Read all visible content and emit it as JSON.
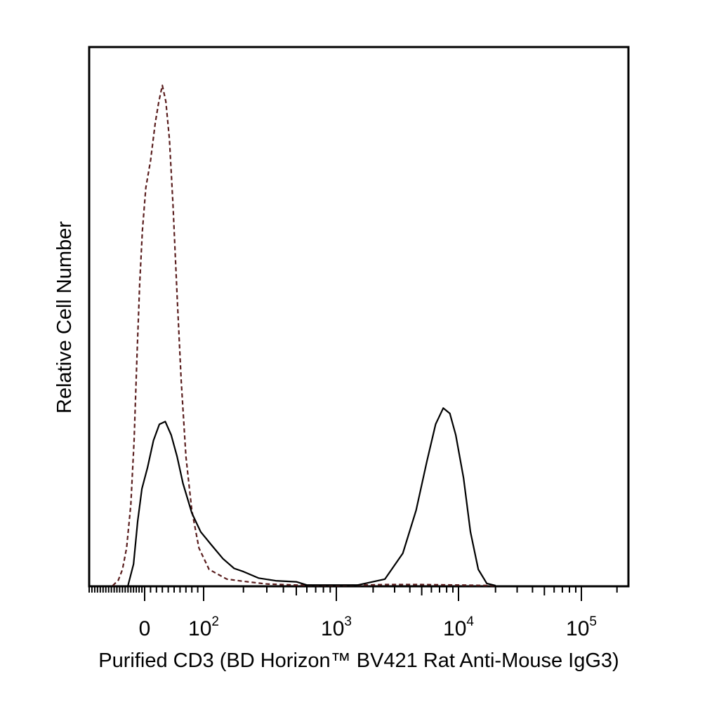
{
  "chart_data": {
    "type": "line",
    "title": "",
    "xlabel": "Purified CD3 (BD Horizon™ BV421 Rat Anti-Mouse IgG3)",
    "ylabel": "Relative Cell Number",
    "x_scale": "biexponential",
    "xlim": [
      -200,
      250000
    ],
    "ylim": [
      0,
      100
    ],
    "grid": false,
    "legend": "none",
    "x_ticks": [
      {
        "value": 0,
        "base": "0",
        "exp": ""
      },
      {
        "value": 100,
        "base": "10",
        "exp": "2"
      },
      {
        "value": 1000,
        "base": "10",
        "exp": "3"
      },
      {
        "value": 10000,
        "base": "10",
        "exp": "4"
      },
      {
        "value": 100000,
        "base": "10",
        "exp": "5"
      }
    ],
    "series": [
      {
        "style": "dashed",
        "color": "#5a1e1e",
        "points": [
          [
            -115,
            0
          ],
          [
            -95,
            1
          ],
          [
            -80,
            3
          ],
          [
            -65,
            7
          ],
          [
            -50,
            15
          ],
          [
            -38,
            27
          ],
          [
            -28,
            42
          ],
          [
            -18,
            56
          ],
          [
            -8,
            66
          ],
          [
            2,
            74
          ],
          [
            10,
            79
          ],
          [
            18,
            86
          ],
          [
            24,
            90
          ],
          [
            30,
            93
          ],
          [
            36,
            90
          ],
          [
            42,
            83
          ],
          [
            48,
            71
          ],
          [
            55,
            54
          ],
          [
            62,
            38
          ],
          [
            70,
            24
          ],
          [
            80,
            14
          ],
          [
            92,
            7
          ],
          [
            110,
            3
          ],
          [
            150,
            1.2
          ],
          [
            200,
            0.8
          ],
          [
            300,
            0.3
          ],
          [
            500,
            0.1
          ],
          [
            1000,
            0
          ],
          [
            2500,
            0.2
          ],
          [
            5000,
            0.2
          ],
          [
            10000,
            0.1
          ],
          [
            20000,
            0
          ]
        ]
      },
      {
        "style": "solid",
        "color": "#000000",
        "points": [
          [
            -60,
            0
          ],
          [
            -40,
            4
          ],
          [
            -25,
            12
          ],
          [
            -10,
            18
          ],
          [
            5,
            22
          ],
          [
            15,
            27
          ],
          [
            25,
            30
          ],
          [
            35,
            30.5
          ],
          [
            45,
            28
          ],
          [
            55,
            24
          ],
          [
            65,
            19
          ],
          [
            80,
            13.5
          ],
          [
            95,
            10
          ],
          [
            115,
            7.5
          ],
          [
            140,
            5
          ],
          [
            170,
            3.2
          ],
          [
            200,
            2.6
          ],
          [
            260,
            1.4
          ],
          [
            350,
            0.9
          ],
          [
            500,
            0.7
          ],
          [
            600,
            0.1
          ],
          [
            1500,
            0.1
          ],
          [
            2500,
            1.2
          ],
          [
            3500,
            6
          ],
          [
            4500,
            14
          ],
          [
            5500,
            23
          ],
          [
            6500,
            30
          ],
          [
            7500,
            33
          ],
          [
            8500,
            32
          ],
          [
            9500,
            28
          ],
          [
            11000,
            20
          ],
          [
            12500,
            10
          ],
          [
            14500,
            3
          ],
          [
            17000,
            0.4
          ],
          [
            20000,
            0
          ]
        ]
      }
    ]
  }
}
